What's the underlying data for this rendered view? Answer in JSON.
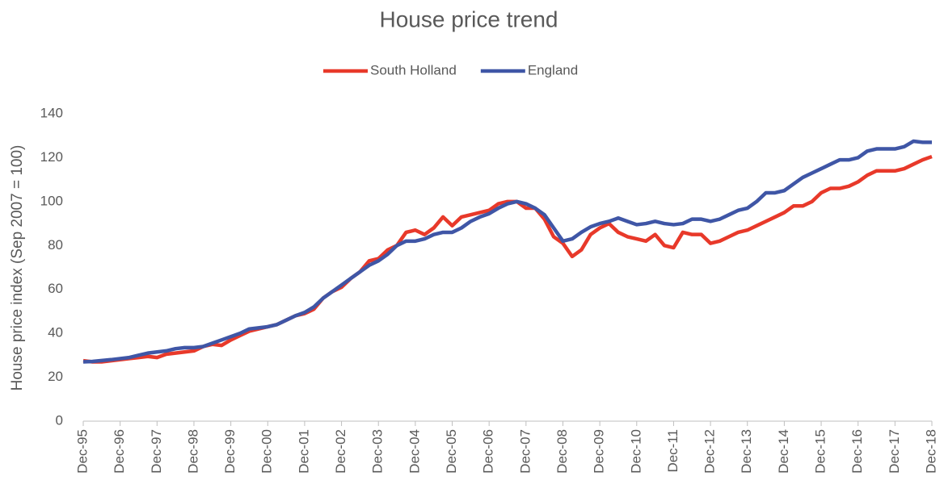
{
  "chart_data": {
    "type": "line",
    "title": "House price trend",
    "y_label": "House price index (Sep 2007 = 100)",
    "categories": [
      "Dec-95",
      null,
      null,
      null,
      "Dec-96",
      null,
      null,
      null,
      "Dec-97",
      null,
      null,
      null,
      "Dec-98",
      null,
      null,
      null,
      "Dec-99",
      null,
      null,
      null,
      "Dec-00",
      null,
      null,
      null,
      "Dec-01",
      null,
      null,
      null,
      "Dec-02",
      null,
      null,
      null,
      "Dec-03",
      null,
      null,
      null,
      "Dec-04",
      null,
      null,
      null,
      "Dec-05",
      null,
      null,
      null,
      "Dec-06",
      null,
      null,
      null,
      "Dec-07",
      null,
      null,
      null,
      "Dec-08",
      null,
      null,
      null,
      "Dec-09",
      null,
      null,
      null,
      "Dec-10",
      null,
      null,
      null,
      "Dec-11",
      null,
      null,
      null,
      "Dec-12",
      null,
      null,
      null,
      "Dec-13",
      null,
      null,
      null,
      "Dec-14",
      null,
      null,
      null,
      "Dec-15",
      null,
      null,
      null,
      "Dec-16",
      null,
      null,
      null,
      "Dec-17",
      null,
      null,
      null,
      "Dec-18"
    ],
    "series": [
      {
        "name": "South Holland",
        "color": "#e8392a",
        "values": [
          27.5,
          27,
          27,
          27.5,
          28,
          28.5,
          29,
          29.5,
          29,
          30.5,
          31,
          31.5,
          32,
          34,
          35,
          34.5,
          37,
          39,
          41,
          42,
          43,
          44,
          46,
          48,
          49,
          51,
          56,
          59,
          61,
          65,
          68,
          73,
          74,
          78,
          80,
          86,
          87,
          85,
          88,
          93,
          89,
          93,
          94,
          95,
          96,
          99,
          100,
          100,
          97,
          97,
          92,
          84,
          81,
          75,
          78,
          85,
          88,
          90,
          86,
          84,
          83,
          82,
          85,
          80,
          79,
          86,
          85,
          85,
          81,
          82,
          84,
          86,
          87,
          89,
          91,
          93,
          95,
          98,
          98,
          100,
          104,
          106,
          106,
          107,
          109,
          112,
          114,
          114,
          114,
          115,
          117,
          119,
          120.5
        ]
      },
      {
        "name": "England",
        "color": "#3f56a6",
        "values": [
          27,
          27.2,
          27.6,
          28,
          28.5,
          29,
          30,
          31,
          31.5,
          32,
          33,
          33.5,
          33.5,
          34,
          35.5,
          37,
          38.5,
          40,
          42,
          42.5,
          43,
          44,
          46,
          48,
          49.5,
          52,
          56,
          59,
          62,
          65,
          68,
          71,
          73,
          76,
          80,
          82,
          82,
          83,
          85,
          86,
          86,
          88,
          91,
          93,
          94.5,
          97,
          99,
          100,
          99,
          97,
          94,
          88,
          82,
          83,
          86,
          88.5,
          90,
          91,
          92.5,
          91,
          89.5,
          90,
          91,
          90,
          89.5,
          90,
          92,
          92,
          91,
          92,
          94,
          96,
          97,
          100,
          104,
          104,
          105,
          108,
          111,
          113,
          115,
          117,
          119,
          119,
          120,
          123,
          124,
          124,
          124,
          125,
          127.5,
          127,
          127
        ]
      }
    ],
    "ylim": [
      0,
      140
    ],
    "yticks": [
      0,
      20,
      40,
      60,
      80,
      100,
      120,
      140
    ],
    "legend": "top"
  }
}
